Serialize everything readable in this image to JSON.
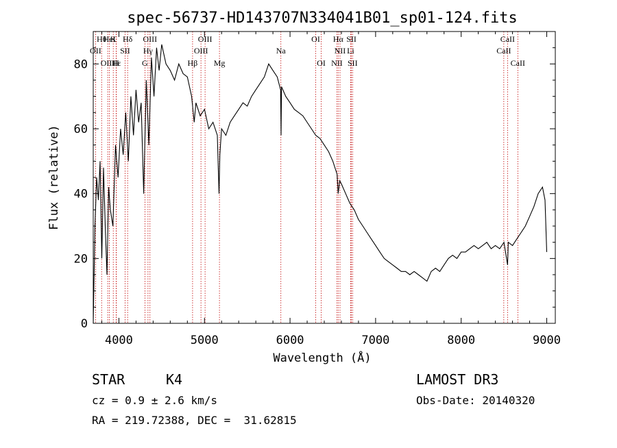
{
  "chart_data": {
    "type": "line",
    "title": "spec-56737-HD143707N334041B01_sp01-124.fits",
    "xlabel": "Wavelength (Å)",
    "ylabel": "Flux (relative)",
    "xlim": [
      3700,
      9100
    ],
    "ylim": [
      0,
      90
    ],
    "xticks": [
      4000,
      5000,
      6000,
      7000,
      8000,
      9000
    ],
    "yticks": [
      0,
      20,
      40,
      60,
      80
    ],
    "grid": false,
    "series": [
      {
        "x": [
          3700,
          3720,
          3740,
          3760,
          3780,
          3800,
          3820,
          3840,
          3860,
          3880,
          3900,
          3930,
          3960,
          3990,
          4020,
          4050,
          4080,
          4110,
          4140,
          4170,
          4200,
          4230,
          4260,
          4290,
          4320,
          4350,
          4380,
          4410,
          4440,
          4470,
          4500,
          4550,
          4600,
          4650,
          4700,
          4750,
          4800,
          4850,
          4880,
          4900,
          4950,
          5000,
          5050,
          5100,
          5150,
          5170,
          5180,
          5200,
          5250,
          5300,
          5350,
          5400,
          5450,
          5500,
          5550,
          5600,
          5650,
          5700,
          5750,
          5800,
          5850,
          5890,
          5895,
          5900,
          5950,
          6000,
          6050,
          6100,
          6150,
          6200,
          6250,
          6300,
          6350,
          6400,
          6450,
          6500,
          6550,
          6563,
          6580,
          6600,
          6650,
          6700,
          6750,
          6800,
          6850,
          6900,
          6950,
          7000,
          7050,
          7100,
          7150,
          7200,
          7250,
          7300,
          7350,
          7400,
          7450,
          7500,
          7550,
          7600,
          7650,
          7700,
          7750,
          7800,
          7850,
          7900,
          7950,
          8000,
          8050,
          8100,
          8150,
          8200,
          8250,
          8300,
          8350,
          8400,
          8450,
          8500,
          8542,
          8550,
          8600,
          8650,
          8700,
          8750,
          8800,
          8850,
          8900,
          8950,
          8980,
          9000
        ],
        "y": [
          0,
          30,
          45,
          38,
          50,
          20,
          48,
          30,
          15,
          42,
          35,
          30,
          55,
          45,
          60,
          52,
          65,
          50,
          70,
          58,
          72,
          62,
          68,
          40,
          75,
          55,
          82,
          70,
          85,
          78,
          86,
          80,
          78,
          75,
          80,
          77,
          76,
          70,
          62,
          68,
          64,
          66,
          60,
          62,
          58,
          40,
          52,
          60,
          58,
          62,
          64,
          66,
          68,
          67,
          70,
          72,
          74,
          76,
          80,
          78,
          76,
          72,
          58,
          73,
          70,
          68,
          66,
          65,
          64,
          62,
          60,
          58,
          57,
          55,
          53,
          50,
          46,
          40,
          44,
          43,
          40,
          37,
          35,
          32,
          30,
          28,
          26,
          24,
          22,
          20,
          19,
          18,
          17,
          16,
          16,
          15,
          16,
          15,
          14,
          13,
          16,
          17,
          16,
          18,
          20,
          21,
          20,
          22,
          22,
          23,
          24,
          23,
          24,
          25,
          23,
          24,
          23,
          25,
          18,
          25,
          24,
          26,
          28,
          30,
          33,
          36,
          40,
          42,
          38,
          22
        ]
      }
    ],
    "line_annotations": {
      "top": [
        {
          "label": "Hθ",
          "x": 3798
        },
        {
          "label": "HeI",
          "x": 3889
        },
        {
          "label": "K",
          "x": 3934
        },
        {
          "label": "Hδ",
          "x": 4102
        },
        {
          "label": "OIII",
          "x": 4363
        },
        {
          "label": "OIII",
          "x": 5007
        },
        {
          "label": "OI",
          "x": 6300
        },
        {
          "label": "Hα",
          "x": 6563
        },
        {
          "label": "SII",
          "x": 6717
        },
        {
          "label": "CaII",
          "x": 8542
        }
      ],
      "middle": [
        {
          "label": "OII",
          "x": 3727
        },
        {
          "label": "SII",
          "x": 4072
        },
        {
          "label": "Hγ",
          "x": 4340
        },
        {
          "label": "OIII",
          "x": 4959
        },
        {
          "label": "Na",
          "x": 5893
        },
        {
          "label": "NII",
          "x": 6584
        },
        {
          "label": "Li",
          "x": 6708
        },
        {
          "label": "CaII",
          "x": 8498
        }
      ],
      "bottom": [
        {
          "label": "OIII",
          "x": 3869
        },
        {
          "label": "Hε",
          "x": 3970
        },
        {
          "label": "H",
          "x": 3968
        },
        {
          "label": "G",
          "x": 4304
        },
        {
          "label": "Hβ",
          "x": 4861
        },
        {
          "label": "Mg",
          "x": 5175
        },
        {
          "label": "OI",
          "x": 6364
        },
        {
          "label": "NII",
          "x": 6548
        },
        {
          "label": "SII",
          "x": 6731
        },
        {
          "label": "CaII",
          "x": 8662
        }
      ]
    }
  },
  "info": {
    "class": "STAR",
    "subclass": "K4",
    "survey": "LAMOST DR3",
    "cz": "cz = 0.9 ± 2.6 km/s",
    "obs_date": "Obs-Date: 20140320",
    "radec": "RA = 219.72388, DEC =  31.62815"
  },
  "colors": {
    "line": "#000000",
    "marker": "#c00000",
    "text": "#000000"
  }
}
